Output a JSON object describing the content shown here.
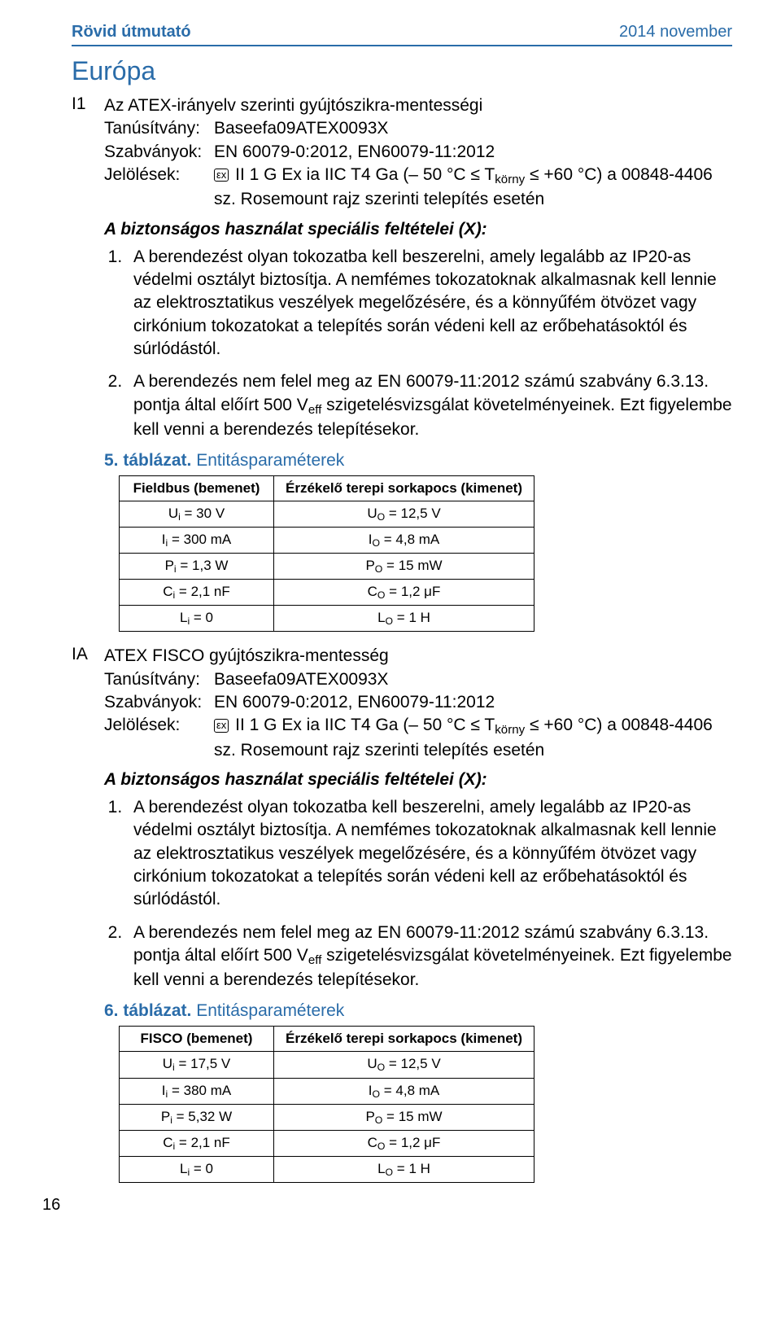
{
  "colors": {
    "accent": "#2a6ca9",
    "text": "#000000",
    "bg": "#ffffff",
    "border": "#000000"
  },
  "header": {
    "left": "Rövid útmutató",
    "right": "2014 november"
  },
  "section_title": "Európa",
  "entries": [
    {
      "code": "I1",
      "title": "Az ATEX-irányelv szerinti gyújtószikra-mentességi",
      "cert_label": "Tanúsítvány:",
      "cert_value": "Baseefa09ATEX0093X",
      "std_label": "Szabványok:",
      "std_value": "EN 60079-0:2012, EN60079-11:2012",
      "mark_label": "Jelölések:",
      "mark_value_pre": "II 1 G Ex ia IIC T4 Ga (– 50 °C ≤ T",
      "mark_value_sub": "körny",
      "mark_value_post": " ≤ +60 °C) a 00848-4406 sz. Rosemount rajz szerinti telepítés esetén",
      "cond_heading": "A biztonságos használat speciális feltételei (X):",
      "conditions": [
        "A berendezést olyan tokozatba kell beszerelni, amely legalább az IP20-as védelmi osztályt biztosítja. A nemfémes tokozatoknak alkalmasnak kell lennie az elektrosztatikus veszélyek megelőzésére, és a könnyűfém ötvözet vagy cirkónium tokozatokat a telepítés során védeni kell az erőbehatásoktól és súrlódástól.",
        "A berendezés nem felel meg az EN 60079-11:2012 számú szabvány 6.3.13. pontja által előírt 500 V<sub>eff</sub> szigetelésvizsgálat követelményeinek. Ezt figyelembe kell venni a berendezés telepítésekor."
      ],
      "table_caption_num": "5. táblázat.",
      "table_caption_txt": " Entitásparaméterek",
      "table": {
        "head": [
          "Fieldbus (bemenet)",
          "Érzékelő terepi sorkapocs (kimenet)"
        ],
        "rows": [
          [
            "U<sub>i</sub> = 30 V",
            "U<sub>O</sub> = 12,5 V"
          ],
          [
            "I<sub>i</sub> = 300 mA",
            "I<sub>O</sub> = 4,8 mA"
          ],
          [
            "P<sub>i</sub> = 1,3 W",
            "P<sub>O</sub> = 15 mW"
          ],
          [
            "C<sub>i</sub> = 2,1 nF",
            "C<sub>O</sub> = 1,2 μF"
          ],
          [
            "L<sub>i</sub> = 0",
            "L<sub>O</sub> = 1 H"
          ]
        ]
      }
    },
    {
      "code": "IA",
      "title": "ATEX FISCO gyújtószikra-mentesség",
      "cert_label": "Tanúsítvány:",
      "cert_value": "Baseefa09ATEX0093X",
      "std_label": "Szabványok:",
      "std_value": "EN 60079-0:2012, EN60079-11:2012",
      "mark_label": "Jelölések:",
      "mark_value_pre": "II 1 G Ex ia IIC T4 Ga (– 50 °C ≤ T",
      "mark_value_sub": "körny",
      "mark_value_post": " ≤ +60 °C) a 00848-4406 sz. Rosemount rajz szerinti telepítés esetén",
      "cond_heading": "A biztonságos használat speciális feltételei (X):",
      "conditions": [
        "A berendezést olyan tokozatba kell beszerelni, amely legalább az IP20-as védelmi osztályt biztosítja. A nemfémes tokozatoknak alkalmasnak kell lennie az elektrosztatikus veszélyek megelőzésére, és a könnyűfém ötvözet vagy cirkónium tokozatokat a telepítés során védeni kell az erőbehatásoktól és súrlódástól.",
        "A berendezés nem felel meg az EN 60079-11:2012 számú szabvány 6.3.13. pontja által előírt 500 V<sub>eff</sub> szigetelésvizsgálat követelményeinek. Ezt figyelembe kell venni a berendezés telepítésekor."
      ],
      "table_caption_num": "6. táblázat.",
      "table_caption_txt": " Entitásparaméterek",
      "table": {
        "head": [
          "FISCO (bemenet)",
          "Érzékelő terepi sorkapocs (kimenet)"
        ],
        "rows": [
          [
            "U<sub>i</sub> = 17,5 V",
            "U<sub>O</sub> = 12,5 V"
          ],
          [
            "I<sub>i</sub> = 380 mA",
            "I<sub>O</sub> = 4,8 mA"
          ],
          [
            "P<sub>i</sub> = 5,32 W",
            "P<sub>O</sub> = 15 mW"
          ],
          [
            "C<sub>i</sub> = 2,1 nF",
            "C<sub>O</sub> = 1,2 μF"
          ],
          [
            "L<sub>i</sub> = 0",
            "L<sub>O</sub> = 1 H"
          ]
        ]
      }
    }
  ],
  "ex_symbol": "εx",
  "page_number": "16"
}
